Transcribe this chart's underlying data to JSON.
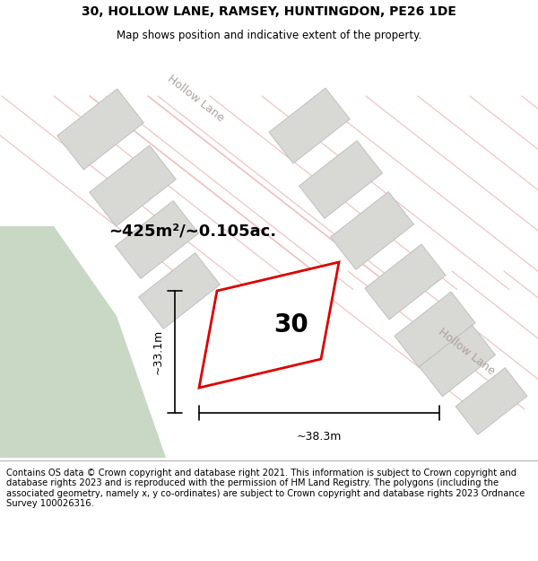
{
  "title_line1": "30, HOLLOW LANE, RAMSEY, HUNTINGDON, PE26 1DE",
  "title_line2": "Map shows position and indicative extent of the property.",
  "footer_text": "Contains OS data © Crown copyright and database right 2021. This information is subject to Crown copyright and database rights 2023 and is reproduced with the permission of HM Land Registry. The polygons (including the associated geometry, namely x, y co-ordinates) are subject to Crown copyright and database rights 2023 Ordnance Survey 100026316.",
  "area_text": "~425m²/~0.105ac.",
  "property_number": "30",
  "dim_width": "~38.3m",
  "dim_height": "~33.1m",
  "map_bg": "#f7f7f5",
  "road_color": "#f0bfbf",
  "building_fill": "#d8d8d4",
  "building_stroke": "#c0c0bc",
  "highlight_stroke": "#dd0000",
  "green_fill": "#c8d8c4",
  "white": "#ffffff",
  "title_fontsize": 10,
  "subtitle_fontsize": 8.5,
  "footer_fontsize": 7.2,
  "prop_number_fontsize": 20,
  "area_fontsize": 13,
  "dim_fontsize": 9,
  "road_label_fontsize": 9
}
